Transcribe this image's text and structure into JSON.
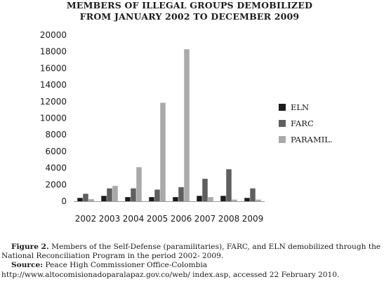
{
  "title_line1": "MEMBERS OF ILLEGAL GROUPS DEMOBILIZED",
  "title_line2": "FROM JANUARY 2002 TO DECEMBER 2009",
  "caption": {
    "fig_label": "Figure 2.",
    "fig_text": " Members of the Self-Defense (paramilitaries), FARC, and ELN demobilized through the National Reconciliation Program in the period 2002- 2009.",
    "source_label": "Source:",
    "source_text": " Peace High Commissioner Office-Colombia http://www.altocomisionadoparalapaz.gov.co/web/ index.asp, accessed 22 February 2010."
  },
  "chart_data": {
    "type": "bar",
    "title": "MEMBERS OF ILLEGAL GROUPS DEMOBILIZED FROM JANUARY 2002 TO DECEMBER 2009",
    "categories": [
      "2002",
      "2003",
      "2004",
      "2005",
      "2006",
      "2007",
      "2008",
      "2009"
    ],
    "series": [
      {
        "name": "ELN",
        "color": "#1c1c1c",
        "values": [
          400,
          650,
          500,
          500,
          500,
          650,
          650,
          400
        ]
      },
      {
        "name": "FARC",
        "color": "#5f5f5f",
        "values": [
          900,
          1550,
          1550,
          1400,
          1700,
          2700,
          3850,
          1550
        ]
      },
      {
        "name": "PARAMIL.",
        "color": "#a9a9a9",
        "values": [
          250,
          1850,
          4100,
          11850,
          18300,
          500,
          200,
          200
        ]
      }
    ],
    "ylim": [
      0,
      20000
    ],
    "yticks": [
      0,
      2000,
      4000,
      6000,
      8000,
      10000,
      12000,
      14000,
      16000,
      18000,
      20000
    ],
    "legend": "right",
    "grid": false
  }
}
